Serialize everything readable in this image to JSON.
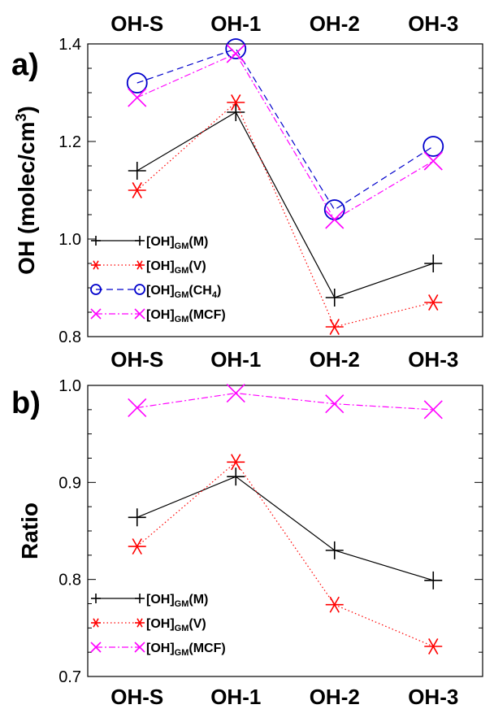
{
  "chart_data": [
    {
      "panel_label": "a)",
      "type": "line",
      "categories": [
        "OH-S",
        "OH-1",
        "OH-2",
        "OH-3"
      ],
      "ylabel": "OH (molec/cm",
      "ylabel_sup": "3",
      "ylabel_close": ")",
      "ylim": [
        0.8,
        1.4
      ],
      "yticks": [
        0.8,
        1.0,
        1.2,
        1.4
      ],
      "ytick_labels": [
        "0.8",
        "1.0",
        "1.2",
        "1.4"
      ],
      "grid": false,
      "legend_position": "lower-left",
      "series": [
        {
          "key": "M",
          "legend": {
            "main": "[OH]",
            "sub": "GM",
            "tail": "(M)"
          },
          "color": "#000000",
          "marker": "plus",
          "dash": "solid",
          "values": [
            1.14,
            1.26,
            0.88,
            0.95
          ]
        },
        {
          "key": "V",
          "legend": {
            "main": "[OH]",
            "sub": "GM",
            "tail": "(V)"
          },
          "color": "#ff0000",
          "marker": "asterisk",
          "dash": "dotted",
          "values": [
            1.1,
            1.28,
            0.82,
            0.87
          ]
        },
        {
          "key": "CH4",
          "legend": {
            "main": "[OH]",
            "sub": "GM",
            "tail": "(CH",
            "sub2": "4",
            "tail2": ")"
          },
          "color": "#0000cc",
          "marker": "circle",
          "dash": "dashed",
          "values": [
            1.32,
            1.39,
            1.06,
            1.19
          ]
        },
        {
          "key": "MCF",
          "legend": {
            "main": "[OH]",
            "sub": "GM",
            "tail": "(MCF)"
          },
          "color": "#ff00ff",
          "marker": "x",
          "dash": "dashdot",
          "values": [
            1.29,
            1.38,
            1.04,
            1.16
          ]
        }
      ]
    },
    {
      "panel_label": "b)",
      "type": "line",
      "categories": [
        "OH-S",
        "OH-1",
        "OH-2",
        "OH-3"
      ],
      "ylabel": "Ratio",
      "ylim": [
        0.7,
        1.0
      ],
      "yticks": [
        0.7,
        0.8,
        0.9,
        1.0
      ],
      "ytick_labels": [
        "0.7",
        "0.8",
        "0.9",
        "1.0"
      ],
      "grid": false,
      "legend_position": "lower-left",
      "series": [
        {
          "key": "M",
          "legend": {
            "main": "[OH]",
            "sub": "GM",
            "tail": "(M)"
          },
          "color": "#000000",
          "marker": "plus",
          "dash": "solid",
          "values": [
            0.864,
            0.906,
            0.83,
            0.799
          ]
        },
        {
          "key": "V",
          "legend": {
            "main": "[OH]",
            "sub": "GM",
            "tail": "(V)"
          },
          "color": "#ff0000",
          "marker": "asterisk",
          "dash": "dotted",
          "values": [
            0.834,
            0.921,
            0.774,
            0.731
          ]
        },
        {
          "key": "MCF",
          "legend": {
            "main": "[OH]",
            "sub": "GM",
            "tail": "(MCF)"
          },
          "color": "#ff00ff",
          "marker": "x",
          "dash": "dashdot",
          "values": [
            0.977,
            0.992,
            0.981,
            0.975
          ]
        }
      ]
    }
  ]
}
